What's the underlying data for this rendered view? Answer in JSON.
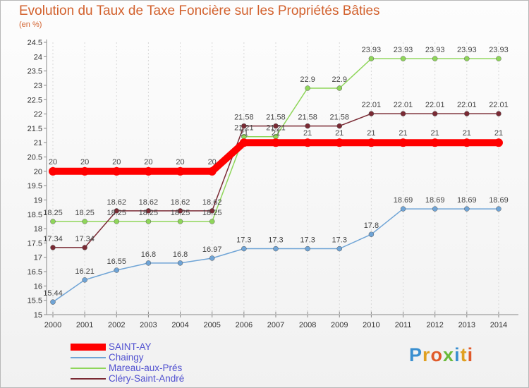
{
  "chart_data": {
    "type": "line",
    "title": "Evolution du Taux de Taxe Foncière sur les Propriétés Bâties",
    "subtitle": "(en %)",
    "x": [
      "2000",
      "2001",
      "2002",
      "2003",
      "2004",
      "2005",
      "2006",
      "2007",
      "2008",
      "2009",
      "2010",
      "2011",
      "2012",
      "2013",
      "2014"
    ],
    "ylim": [
      15,
      24.5
    ],
    "yticks": [
      "15",
      "15.5",
      "16",
      "16.5",
      "17",
      "17.5",
      "18",
      "18.5",
      "19",
      "19.5",
      "20",
      "20.5",
      "21",
      "21.5",
      "22",
      "22.5",
      "23",
      "23.5",
      "24",
      "24.5"
    ],
    "series": [
      {
        "name": "SAINT-AY",
        "color": "#ff0000",
        "values": [
          20,
          20,
          20,
          20,
          20,
          20,
          21,
          21,
          21,
          21,
          21,
          21,
          21,
          21,
          21
        ],
        "labels": [
          "20",
          "20",
          "20",
          "20",
          "20",
          "20",
          "21",
          "21",
          "21",
          "21",
          "21",
          "21",
          "21",
          "21",
          "21"
        ]
      },
      {
        "name": "Chaingy",
        "color": "#6fa4d6",
        "values": [
          15.44,
          16.21,
          16.55,
          16.8,
          16.8,
          16.97,
          17.3,
          17.3,
          17.3,
          17.3,
          17.8,
          18.69,
          18.69,
          18.69,
          18.69
        ],
        "labels": [
          "15.44",
          "16.21",
          "16.55",
          "16.8",
          "16.8",
          "16.97",
          "17.3",
          "17.3",
          "17.3",
          "17.3",
          "17.8",
          "18.69",
          "18.69",
          "18.69",
          "18.69"
        ]
      },
      {
        "name": "Mareau-aux-Prés",
        "color": "#8fd65a",
        "values": [
          18.25,
          18.25,
          18.25,
          18.25,
          18.25,
          18.25,
          21.21,
          21.21,
          22.9,
          22.9,
          23.93,
          23.93,
          23.93,
          23.93,
          23.93
        ],
        "labels": [
          "18.25",
          "18.25",
          "18.25",
          "18.25",
          "18.25",
          "18.25",
          "21.21",
          "21.21",
          "22.9",
          "22.9",
          "23.93",
          "23.93",
          "23.93",
          "23.93",
          "23.93"
        ]
      },
      {
        "name": "Cléry-Saint-André",
        "color": "#7a2a34",
        "values": [
          17.34,
          17.34,
          18.62,
          18.62,
          18.62,
          18.62,
          21.58,
          21.58,
          21.58,
          21.58,
          22.01,
          22.01,
          22.01,
          22.01,
          22.01
        ],
        "labels": [
          "17.34",
          "17.34",
          "18.62",
          "18.62",
          "18.62",
          "18.62",
          "21.58",
          "21.58",
          "21.58",
          "21.58",
          "22.01",
          "22.01",
          "22.01",
          "22.01",
          "22.01"
        ]
      }
    ],
    "legend": "bottom-left"
  },
  "branding": {
    "logo_text": "Proxiti",
    "logo_colors": [
      "#3a8fd0",
      "#e0a020",
      "#e05a2a",
      "#6aba3a",
      "#3a8fd0",
      "#e0a020",
      "#e05a2a"
    ]
  }
}
